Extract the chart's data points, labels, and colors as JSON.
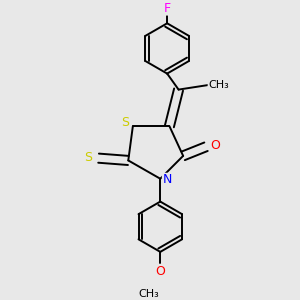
{
  "bg_color": "#e8e8e8",
  "bond_color": "#000000",
  "bond_width": 1.4,
  "atom_colors": {
    "S": "#cccc00",
    "N": "#0000ff",
    "O": "#ff0000",
    "F": "#ff00ff",
    "C": "#000000"
  }
}
